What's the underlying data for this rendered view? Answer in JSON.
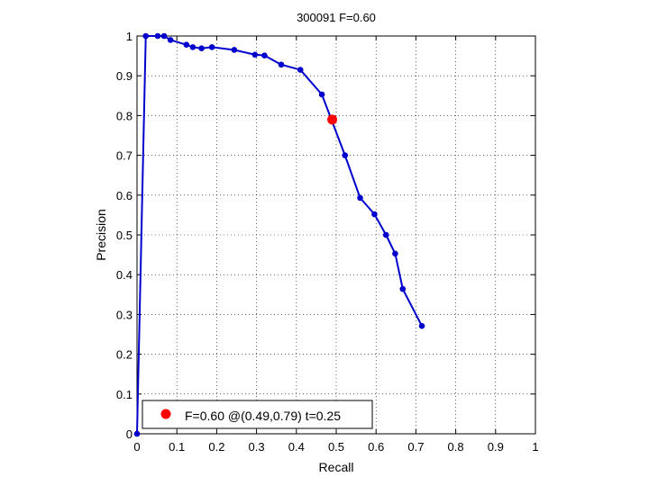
{
  "chart_data": {
    "type": "line",
    "title": "300091 F=0.60",
    "xlabel": "Recall",
    "ylabel": "Precision",
    "xlim": [
      0,
      1
    ],
    "ylim": [
      0,
      1
    ],
    "xticks": [
      0,
      0.1,
      0.2,
      0.3,
      0.4,
      0.5,
      0.6,
      0.7,
      0.8,
      0.9,
      1
    ],
    "yticks": [
      0,
      0.1,
      0.2,
      0.3,
      0.4,
      0.5,
      0.6,
      0.7,
      0.8,
      0.9,
      1
    ],
    "xtick_labels": [
      "0",
      "0.1",
      "0.2",
      "0.3",
      "0.4",
      "0.5",
      "0.6",
      "0.7",
      "0.8",
      "0.9",
      "1"
    ],
    "ytick_labels": [
      "0",
      "0.1",
      "0.2",
      "0.3",
      "0.4",
      "0.5",
      "0.6",
      "0.7",
      "0.8",
      "0.9",
      "1"
    ],
    "grid": true,
    "series": [
      {
        "color": "#0000cc",
        "x": [
          0.0,
          0.022,
          0.052,
          0.068,
          0.084,
          0.124,
          0.14,
          0.162,
          0.188,
          0.244,
          0.296,
          0.32,
          0.362,
          0.41,
          0.464,
          0.522,
          0.56,
          0.596,
          0.625,
          0.648,
          0.667,
          0.715
        ],
        "y": [
          0.0,
          1.0,
          1.0,
          1.0,
          0.99,
          0.978,
          0.972,
          0.969,
          0.972,
          0.965,
          0.953,
          0.951,
          0.928,
          0.915,
          0.853,
          0.7,
          0.593,
          0.552,
          0.5,
          0.453,
          0.364,
          0.271
        ]
      }
    ],
    "highlight_point": {
      "x": 0.49,
      "y": 0.79,
      "color": "#ff0000"
    },
    "legend": {
      "placement": "bottom-left",
      "label": "F=0.60 @(0.49,0.79) t=0.25"
    }
  }
}
